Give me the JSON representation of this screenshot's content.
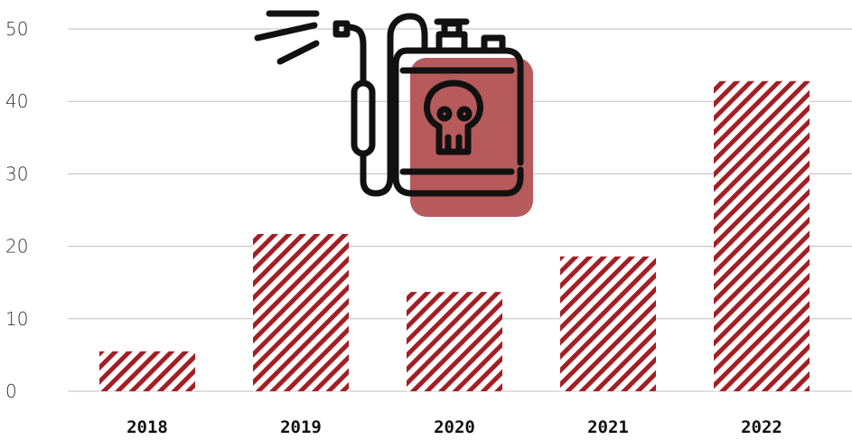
{
  "chart_data": {
    "type": "bar",
    "categories": [
      "2018",
      "2019",
      "2020",
      "2021",
      "2022"
    ],
    "values": [
      5.5,
      21.7,
      13.7,
      18.6,
      42.8
    ],
    "title": "",
    "xlabel": "",
    "ylabel": "",
    "ylim": [
      0,
      50
    ],
    "yticks": [
      0,
      10,
      20,
      30,
      40,
      50
    ],
    "grid": true,
    "bar_fill": "diagonal-hatch",
    "bar_color": "#a31f24"
  },
  "illustration": {
    "icon": "pesticide-sprayer-skull-icon",
    "accent_color": "#b65a5c",
    "stroke_color": "#111111"
  }
}
